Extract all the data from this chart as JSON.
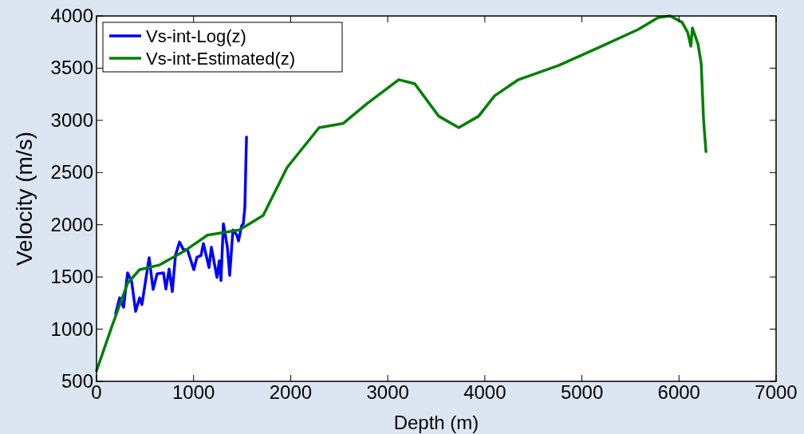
{
  "chart_data": {
    "type": "line",
    "xlabel": "Depth (m)",
    "ylabel": "Velocity (m/s)",
    "xlim": [
      0,
      7000
    ],
    "ylim": [
      500,
      4000
    ],
    "xticks": [
      0,
      1000,
      2000,
      3000,
      4000,
      5000,
      6000,
      7000
    ],
    "yticks": [
      500,
      1000,
      1500,
      2000,
      2500,
      3000,
      3500,
      4000
    ],
    "grid": false,
    "legend": "top left",
    "line_style": "solid",
    "marker": "none",
    "series": [
      {
        "name": "Vs-int-Log(z)",
        "color": "#0000ff",
        "x": [
          197,
          238,
          279,
          320,
          362,
          403,
          444,
          468,
          542,
          583,
          624,
          690,
          715,
          748,
          781,
          813,
          855,
          896,
          937,
          1002,
          1035,
          1076,
          1101,
          1159,
          1183,
          1241,
          1265,
          1282,
          1307,
          1348,
          1372,
          1405,
          1446,
          1463,
          1495,
          1512,
          1528,
          1545
        ],
        "values": [
          1150,
          1300,
          1210,
          1540,
          1455,
          1170,
          1300,
          1235,
          1685,
          1380,
          1530,
          1540,
          1385,
          1575,
          1360,
          1705,
          1835,
          1760,
          1760,
          1570,
          1690,
          1705,
          1820,
          1590,
          1785,
          1495,
          1655,
          1465,
          2010,
          1785,
          1515,
          1950,
          1900,
          1845,
          1990,
          2010,
          2165,
          2840
        ]
      },
      {
        "name": "Vs-int-Estimated(z)",
        "color": "#008000",
        "x": [
          0,
          156,
          320,
          444,
          650,
          900,
          1142,
          1471,
          1717,
          1964,
          2293,
          2539,
          2786,
          3114,
          3278,
          3525,
          3731,
          3936,
          4100,
          4347,
          4758,
          5168,
          5579,
          5785,
          5908,
          6031,
          6089,
          6122,
          6138,
          6196,
          6229,
          6253,
          6278
        ],
        "values": [
          600,
          1020,
          1440,
          1570,
          1615,
          1745,
          1900,
          1950,
          2090,
          2550,
          2930,
          2970,
          3160,
          3390,
          3350,
          3040,
          2930,
          3040,
          3235,
          3390,
          3525,
          3695,
          3870,
          3985,
          4000,
          3940,
          3845,
          3710,
          3885,
          3730,
          3540,
          3005,
          2700
        ]
      }
    ]
  }
}
